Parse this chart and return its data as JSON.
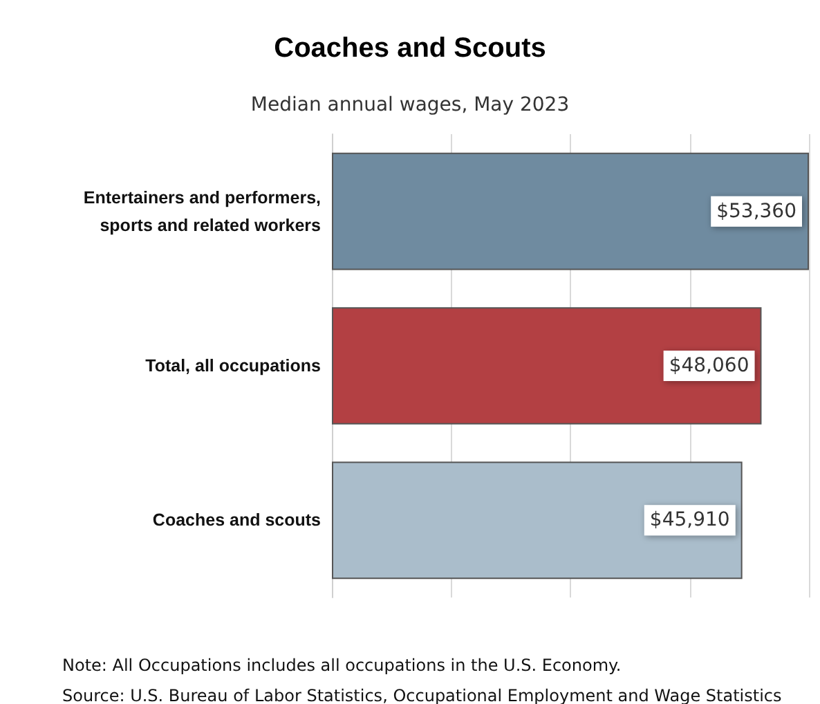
{
  "chart_data": {
    "type": "bar",
    "orientation": "horizontal",
    "title": "Coaches and Scouts",
    "subtitle": "Median annual wages, May 2023",
    "categories": [
      "Entertainers and performers,\nsports and related workers",
      "Total, all occupations",
      "Coaches and scouts"
    ],
    "values": [
      53360,
      48060,
      45910
    ],
    "colors": [
      "#6f8ba0",
      "#b34043",
      "#aabdcb"
    ],
    "value_labels": [
      "$53,360",
      "$48,060",
      "$45,910"
    ],
    "xlim": [
      0,
      53360
    ],
    "xticks": [
      {
        "value": 0,
        "label": null
      },
      {
        "value": 13340,
        "label": null
      },
      {
        "value": 26680,
        "label": null
      },
      {
        "value": 40020,
        "label": null
      },
      {
        "value": 53360,
        "label": null
      }
    ],
    "grid": "x",
    "tick_labels": "y",
    "annotations": [
      "Note: All Occupations includes all occupations in the U.S. Economy.",
      "Source: U.S. Bureau of Labor Statistics, Occupational Employment and Wage Statistics"
    ]
  }
}
